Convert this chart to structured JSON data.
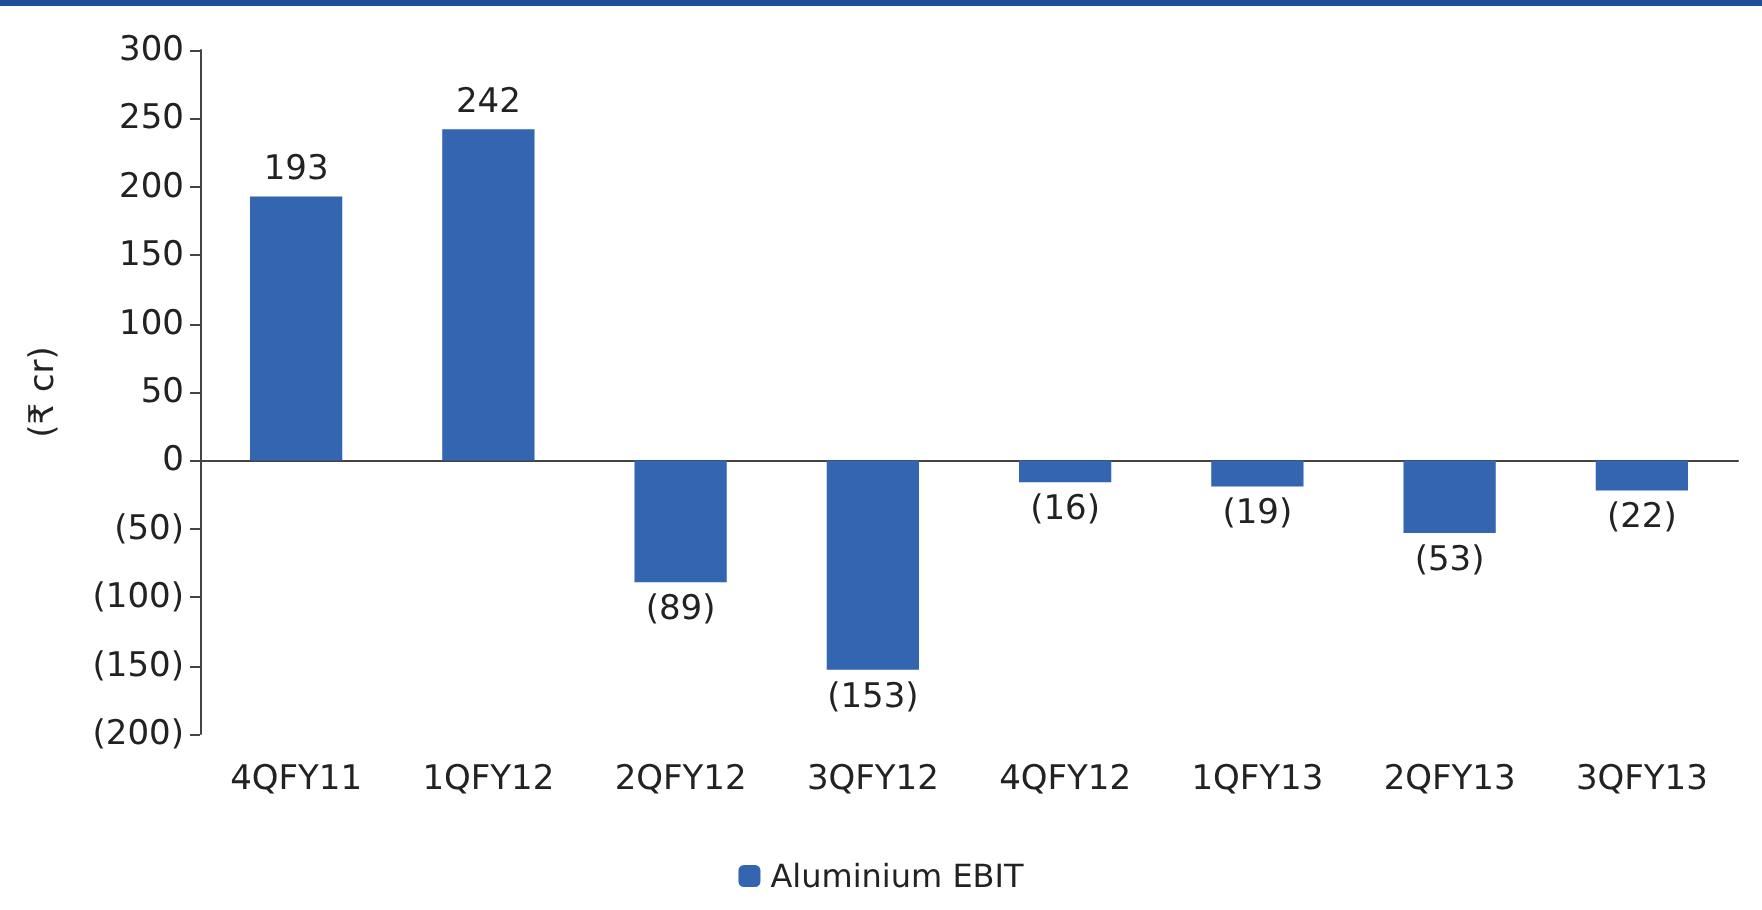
{
  "chart_data": {
    "type": "bar",
    "ylabel": "(₹ cr)",
    "categories": [
      "4QFY11",
      "1QFY12",
      "2QFY12",
      "3QFY12",
      "4QFY12",
      "1QFY13",
      "2QFY13",
      "3QFY13"
    ],
    "series": [
      {
        "name": "Aluminium EBIT",
        "color": "#3465b1",
        "values": [
          193,
          242,
          -89,
          -153,
          -16,
          -19,
          -53,
          -22
        ],
        "value_labels": [
          "193",
          "242",
          "(89)",
          "(153)",
          "(16)",
          "(19)",
          "(53)",
          "(22)"
        ]
      }
    ],
    "ylim": [
      -200,
      300
    ],
    "yticks": [
      {
        "value": -200,
        "label": "(200)"
      },
      {
        "value": -150,
        "label": "(150)"
      },
      {
        "value": -100,
        "label": "(100)"
      },
      {
        "value": -50,
        "label": "(50)"
      },
      0,
      50,
      100,
      150,
      200,
      250,
      300
    ],
    "legend": "bottom"
  }
}
